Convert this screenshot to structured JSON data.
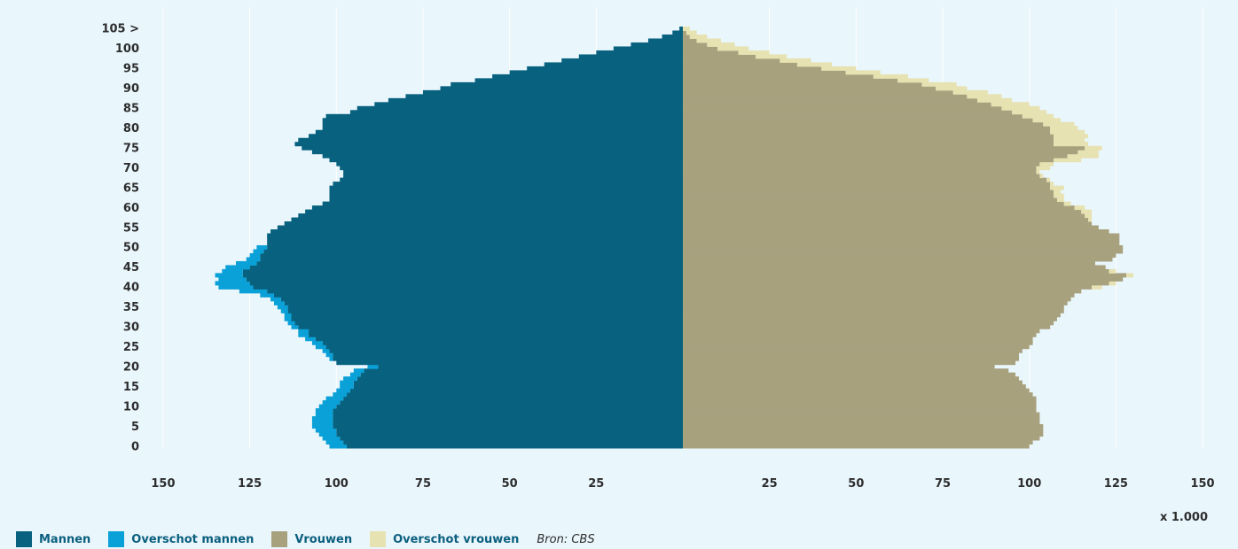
{
  "chart_data": {
    "type": "bar",
    "orientation": "horizontal",
    "subtype": "population-pyramid",
    "unit_label": "x 1.000",
    "source": "Bron: CBS",
    "y_ticks": [
      "105 >",
      "100",
      "95",
      "90",
      "85",
      "80",
      "75",
      "70",
      "65",
      "60",
      "55",
      "50",
      "45",
      "40",
      "35",
      "30",
      "25",
      "20",
      "15",
      "10",
      "5",
      "0"
    ],
    "x_ticks_left": [
      "150",
      "125",
      "100",
      "75",
      "50",
      "25"
    ],
    "x_ticks_right": [
      "25",
      "50",
      "75",
      "100",
      "125",
      "150"
    ],
    "xlim": [
      0,
      150
    ],
    "ages": [
      0,
      1,
      2,
      3,
      4,
      5,
      6,
      7,
      8,
      9,
      10,
      11,
      12,
      13,
      14,
      15,
      16,
      17,
      18,
      19,
      20,
      21,
      22,
      23,
      24,
      25,
      26,
      27,
      28,
      29,
      30,
      31,
      32,
      33,
      34,
      35,
      36,
      37,
      38,
      39,
      40,
      41,
      42,
      43,
      44,
      45,
      46,
      47,
      48,
      49,
      50,
      51,
      52,
      53,
      54,
      55,
      56,
      57,
      58,
      59,
      60,
      61,
      62,
      63,
      64,
      65,
      66,
      67,
      68,
      69,
      70,
      71,
      72,
      73,
      74,
      75,
      76,
      77,
      78,
      79,
      80,
      81,
      82,
      83,
      84,
      85,
      86,
      87,
      88,
      89,
      90,
      91,
      92,
      93,
      94,
      95,
      96,
      97,
      98,
      99,
      100,
      101,
      102,
      103,
      104,
      105
    ],
    "series": [
      {
        "name": "Mannen",
        "color": "#08627f",
        "values": [
          97,
          98,
          99,
          100,
          100,
          101,
          101,
          101,
          101,
          101,
          100,
          99,
          98,
          97,
          96,
          95,
          95,
          94,
          93,
          92,
          88,
          100,
          101,
          101,
          102,
          103,
          104,
          106,
          108,
          108,
          111,
          112,
          113,
          113,
          114,
          114,
          115,
          116,
          118,
          120,
          124,
          125,
          126,
          127,
          127,
          125,
          123,
          122,
          122,
          121,
          120,
          120,
          120,
          120,
          119,
          117,
          115,
          113,
          111,
          109,
          107,
          104,
          102,
          102,
          102,
          102,
          101,
          99,
          98,
          98,
          99,
          100,
          102,
          104,
          107,
          110,
          112,
          111,
          108,
          106,
          104,
          104,
          104,
          103,
          96,
          94,
          89,
          85,
          80,
          75,
          70,
          67,
          60,
          55,
          50,
          45,
          40,
          35,
          30,
          25,
          20,
          15,
          10,
          6,
          3,
          1
        ]
      },
      {
        "name": "Overschot mannen",
        "color": "#0aa0d8",
        "values": [
          5,
          5,
          5,
          5,
          6,
          6,
          6,
          6,
          5,
          5,
          5,
          5,
          5,
          4,
          4,
          4,
          4,
          4,
          3,
          3,
          3,
          0,
          1,
          2,
          2,
          3,
          3,
          3,
          3,
          3,
          2,
          2,
          2,
          2,
          2,
          3,
          3,
          3,
          4,
          8,
          10,
          10,
          8,
          8,
          6,
          7,
          6,
          4,
          3,
          3,
          3,
          0,
          0,
          0,
          0,
          0,
          0,
          0,
          0,
          0,
          0,
          0,
          0,
          0,
          0,
          0,
          0,
          0,
          0,
          0,
          0,
          0,
          0,
          0,
          0,
          0,
          0,
          0,
          0,
          0,
          0,
          0,
          0,
          0,
          0,
          0,
          0,
          0,
          0,
          0,
          0,
          0,
          0,
          0,
          0,
          0,
          0,
          0,
          0,
          0,
          0,
          0,
          0,
          0,
          0,
          0
        ]
      },
      {
        "name": "Vrouwen",
        "color": "#a8a17e",
        "values": [
          100,
          101,
          103,
          104,
          104,
          104,
          103,
          103,
          103,
          102,
          102,
          102,
          102,
          101,
          100,
          99,
          98,
          97,
          96,
          94,
          90,
          96,
          97,
          97,
          98,
          100,
          101,
          101,
          102,
          103,
          106,
          107,
          108,
          109,
          110,
          110,
          111,
          112,
          113,
          115,
          118,
          123,
          127,
          128,
          123,
          122,
          119,
          124,
          125,
          127,
          127,
          126,
          126,
          126,
          123,
          120,
          118,
          117,
          116,
          115,
          113,
          110,
          108,
          107,
          107,
          106,
          106,
          105,
          103,
          102,
          102,
          103,
          107,
          111,
          114,
          116,
          107,
          107,
          107,
          106,
          106,
          104,
          101,
          98,
          95,
          92,
          89,
          85,
          82,
          78,
          73,
          69,
          62,
          55,
          47,
          40,
          33,
          28,
          21,
          16,
          10,
          7,
          4,
          2,
          1,
          0
        ]
      },
      {
        "name": "Overschot vrouwen",
        "color": "#e7e2b2",
        "values": [
          0,
          0,
          0,
          0,
          0,
          0,
          0,
          0,
          0,
          0,
          0,
          0,
          0,
          0,
          0,
          0,
          0,
          0,
          0,
          0,
          0,
          0,
          0,
          0,
          0,
          0,
          0,
          0,
          0,
          0,
          0,
          0,
          0,
          0,
          0,
          0,
          0,
          0,
          0,
          0,
          3,
          2,
          0,
          2,
          2,
          0,
          0,
          0,
          0,
          0,
          0,
          0,
          0,
          0,
          0,
          0,
          0,
          1,
          2,
          3,
          3,
          2,
          2,
          3,
          2,
          4,
          1,
          1,
          1,
          1,
          4,
          4,
          8,
          9,
          6,
          5,
          10,
          9,
          10,
          10,
          8,
          9,
          8,
          9,
          10,
          11,
          11,
          10,
          10,
          10,
          9,
          10,
          9,
          10,
          10,
          10,
          10,
          9,
          9,
          9,
          9,
          8,
          7,
          5,
          3,
          2
        ]
      }
    ]
  },
  "legend": {
    "items": [
      {
        "label": "Mannen",
        "color": "#08627f"
      },
      {
        "label": "Overschot mannen",
        "color": "#0aa0d8"
      },
      {
        "label": "Vrouwen",
        "color": "#a8a17e"
      },
      {
        "label": "Overschot vrouwen",
        "color": "#e7e2b2"
      }
    ],
    "source": "Bron: CBS"
  }
}
